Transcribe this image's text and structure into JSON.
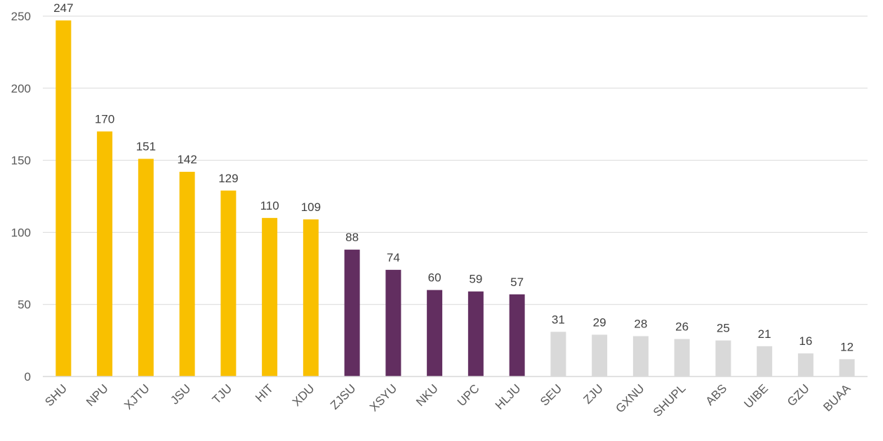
{
  "chart_data": {
    "type": "bar",
    "title": "",
    "xlabel": "",
    "ylabel": "",
    "ylim": [
      0,
      250
    ],
    "yticks": [
      0,
      50,
      100,
      150,
      200,
      250
    ],
    "grid": true,
    "categories": [
      "SHU",
      "NPU",
      "XJTU",
      "JSU",
      "TJU",
      "HIT",
      "XDU",
      "ZJSU",
      "XSYU",
      "NKU",
      "UPC",
      "HLJU",
      "SEU",
      "ZJU",
      "GXNU",
      "SHUPL",
      "ABS",
      "UIBE",
      "GZU",
      "BUAA"
    ],
    "values": [
      247,
      170,
      151,
      142,
      129,
      110,
      109,
      88,
      74,
      60,
      59,
      57,
      31,
      29,
      28,
      26,
      25,
      21,
      16,
      12
    ],
    "colors": [
      "#F9C000",
      "#F9C000",
      "#F9C000",
      "#F9C000",
      "#F9C000",
      "#F9C000",
      "#F9C000",
      "#622E60",
      "#622E60",
      "#622E60",
      "#622E60",
      "#622E60",
      "#D9D9D9",
      "#D9D9D9",
      "#D9D9D9",
      "#D9D9D9",
      "#D9D9D9",
      "#D9D9D9",
      "#D9D9D9",
      "#D9D9D9"
    ],
    "data_labels": true
  }
}
